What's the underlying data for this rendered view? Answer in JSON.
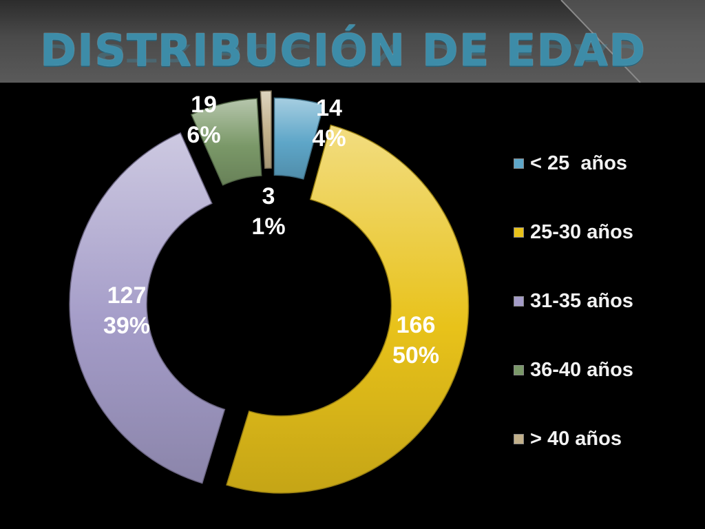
{
  "slide": {
    "title": "DISTRIBUCIÓN DE EDAD"
  },
  "chart_data": {
    "type": "pie",
    "style": "exploded-doughnut",
    "title": "",
    "categories": [
      "< 25  años",
      "25-30 años",
      "31-35 años",
      "36-40 años",
      "> 40 años"
    ],
    "values": [
      14,
      166,
      127,
      19,
      3
    ],
    "percent_labels": [
      "4%",
      "50%",
      "39%",
      "6%",
      "1%"
    ],
    "colors": [
      "#5ea6c8",
      "#e8c21a",
      "#a49cc8",
      "#7a9868",
      "#c2b08a"
    ],
    "legend_position": "right",
    "data_label_color": "#ffffff",
    "data_label_color_gold": "#ffffff"
  },
  "legend": {
    "items": [
      {
        "label": "< 25  años",
        "color": "#5ea6c8"
      },
      {
        "label": "25-30 años",
        "color": "#e8c21a"
      },
      {
        "label": "31-35 años",
        "color": "#a49cc8"
      },
      {
        "label": "36-40 años",
        "color": "#7a9868"
      },
      {
        "label": "> 40 años",
        "color": "#c2b08a"
      }
    ]
  }
}
